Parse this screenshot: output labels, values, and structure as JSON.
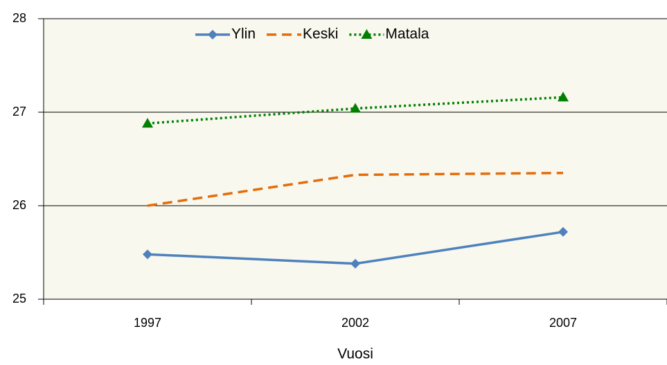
{
  "chart_data": {
    "type": "line",
    "x_label": "Vuosi",
    "categories": [
      "1997",
      "2002",
      "2007"
    ],
    "ylim": [
      25,
      28
    ],
    "yticks": [
      25,
      26,
      27,
      28
    ],
    "grid": true,
    "legend": "top",
    "series": [
      {
        "name": "Ylin",
        "color": "#4f81bd",
        "dash": "solid",
        "marker": "diamond",
        "values": [
          25.48,
          25.38,
          25.72
        ]
      },
      {
        "name": "Keski",
        "color": "#e46c0a",
        "dash": "dashed",
        "marker": "none",
        "values": [
          26.0,
          26.33,
          26.35
        ]
      },
      {
        "name": "Matala",
        "color": "#008000",
        "dash": "dotted",
        "marker": "triangle",
        "values": [
          26.88,
          27.04,
          27.16
        ]
      }
    ]
  }
}
